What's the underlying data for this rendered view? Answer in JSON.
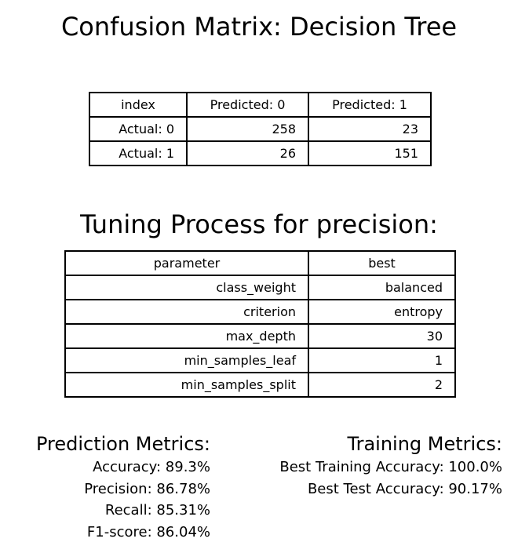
{
  "chart_data": [
    {
      "type": "table",
      "title": "Confusion Matrix: Decision Tree",
      "columns": [
        "index",
        "Predicted: 0",
        "Predicted: 1"
      ],
      "rows": [
        [
          "Actual: 0",
          "258",
          "23"
        ],
        [
          "Actual: 1",
          "26",
          "151"
        ]
      ]
    },
    {
      "type": "table",
      "title": "Tuning Process for precision:",
      "columns": [
        "parameter",
        "best"
      ],
      "rows": [
        [
          "class_weight",
          "balanced"
        ],
        [
          "criterion",
          "entropy"
        ],
        [
          "max_depth",
          "30"
        ],
        [
          "min_samples_leaf",
          "1"
        ],
        [
          "min_samples_split",
          "2"
        ]
      ]
    }
  ],
  "prediction_metrics": {
    "heading": "Prediction Metrics:",
    "lines": [
      "Accuracy: 89.3%",
      "Precision: 86.78%",
      "Recall: 85.31%",
      "F1-score: 86.04%"
    ]
  },
  "training_metrics": {
    "heading": "Training Metrics:",
    "lines": [
      "Best Training Accuracy: 100.0%",
      "Best Test Accuracy: 90.17%"
    ]
  }
}
